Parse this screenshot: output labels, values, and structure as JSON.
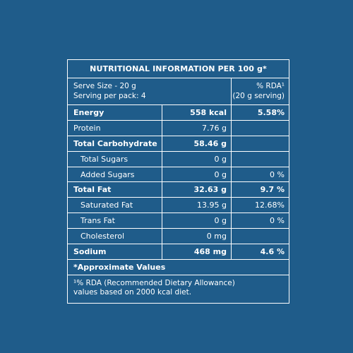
{
  "panel": {
    "title": "NUTRITIONAL INFORMATION PER 100 g*",
    "serve_size": "Serve Size - 20 g",
    "serving_per_pack": "Serving per pack: 4",
    "rda_header_1": "% RDA¹",
    "rda_header_2": "(20 g serving)",
    "rows": [
      {
        "name": "Energy",
        "amount": "558 kcal",
        "rda": "5.58%"
      },
      {
        "name": "Protein",
        "amount": "7.76 g",
        "rda": ""
      },
      {
        "name": "Total Carbohydrate",
        "amount": "58.46 g",
        "rda": ""
      },
      {
        "name": "Total Sugars",
        "amount": "0 g",
        "rda": ""
      },
      {
        "name": "Added Sugars",
        "amount": "0 g",
        "rda": "0 %"
      },
      {
        "name": "Total Fat",
        "amount": "32.63 g",
        "rda": "9.7 %"
      },
      {
        "name": "Saturated Fat",
        "amount": "13.95 g",
        "rda": "12.68%"
      },
      {
        "name": "Trans Fat",
        "amount": "0 g",
        "rda": "0 %"
      },
      {
        "name": "Cholesterol",
        "amount": "0 mg",
        "rda": ""
      },
      {
        "name": "Sodium",
        "amount": "468 mg",
        "rda": "4.6 %"
      }
    ],
    "approx_note": "*Approximate Values",
    "rda_note_1": "¹% RDA (Recommended Dietary Allowance)",
    "rda_note_2": "values based on 2000 kcal diet."
  }
}
